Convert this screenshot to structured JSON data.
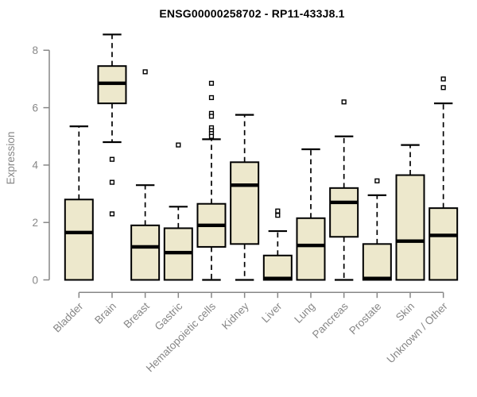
{
  "chart_data": {
    "type": "boxplot",
    "title": "ENSG00000258702 - RP11-433J8.1",
    "xlabel": "",
    "ylabel": "Expression",
    "ylim": [
      0,
      8.7
    ],
    "yticks": [
      0,
      2,
      4,
      6,
      8
    ],
    "grid": false,
    "legend": false,
    "category_label_rotation": 45,
    "categories": [
      "Bladder",
      "Brain",
      "Breast",
      "Gastric",
      "Hematopoietic cells",
      "Kidney",
      "Liver",
      "Lung",
      "Pancreas",
      "Prostate",
      "Skin",
      "Unknown / Other"
    ],
    "series": [
      {
        "category": "Bladder",
        "whisker_low": 0,
        "q1": 0,
        "median": 1.65,
        "q3": 2.8,
        "whisker_high": 5.35,
        "outliers": []
      },
      {
        "category": "Brain",
        "whisker_low": 4.8,
        "q1": 6.15,
        "median": 6.85,
        "q3": 7.45,
        "whisker_high": 8.55,
        "outliers": [
          4.2,
          3.4,
          2.3
        ]
      },
      {
        "category": "Breast",
        "whisker_low": 0,
        "q1": 0,
        "median": 1.15,
        "q3": 1.9,
        "whisker_high": 3.3,
        "outliers": [
          7.25
        ]
      },
      {
        "category": "Gastric",
        "whisker_low": 0,
        "q1": 0,
        "median": 0.95,
        "q3": 1.8,
        "whisker_high": 2.55,
        "outliers": [
          4.7
        ]
      },
      {
        "category": "Hematopoietic cells",
        "whisker_low": 0,
        "q1": 1.15,
        "median": 1.9,
        "q3": 2.65,
        "whisker_high": 4.9,
        "outliers": [
          6.85,
          6.35,
          5.8,
          5.7,
          5.3,
          5.2,
          5.1,
          5.0
        ]
      },
      {
        "category": "Kidney",
        "whisker_low": 0,
        "q1": 1.25,
        "median": 3.3,
        "q3": 4.1,
        "whisker_high": 5.75,
        "outliers": []
      },
      {
        "category": "Liver",
        "whisker_low": 0,
        "q1": 0,
        "median": 0.05,
        "q3": 0.85,
        "whisker_high": 1.7,
        "outliers": [
          2.4,
          2.25
        ]
      },
      {
        "category": "Lung",
        "whisker_low": 0,
        "q1": 0,
        "median": 1.2,
        "q3": 2.15,
        "whisker_high": 4.55,
        "outliers": []
      },
      {
        "category": "Pancreas",
        "whisker_low": 0,
        "q1": 1.5,
        "median": 2.7,
        "q3": 3.2,
        "whisker_high": 5.0,
        "outliers": [
          6.2
        ]
      },
      {
        "category": "Prostate",
        "whisker_low": 0,
        "q1": 0,
        "median": 0.05,
        "q3": 1.25,
        "whisker_high": 2.95,
        "outliers": [
          3.45
        ]
      },
      {
        "category": "Skin",
        "whisker_low": 0,
        "q1": 0,
        "median": 1.35,
        "q3": 3.65,
        "whisker_high": 4.7,
        "outliers": []
      },
      {
        "category": "Unknown / Other",
        "whisker_low": 0,
        "q1": 0,
        "median": 1.55,
        "q3": 2.5,
        "whisker_high": 6.15,
        "outliers": [
          7.0,
          6.7
        ]
      }
    ],
    "colors": {
      "box_fill": "#EDE8CC",
      "box_stroke": "#000000",
      "median": "#000000",
      "whisker": "#000000",
      "outlier_fill": "#FFFFFF",
      "axis": "#878787",
      "tick_label": "#878787",
      "title": "#000000",
      "background": "#FFFFFF"
    }
  }
}
